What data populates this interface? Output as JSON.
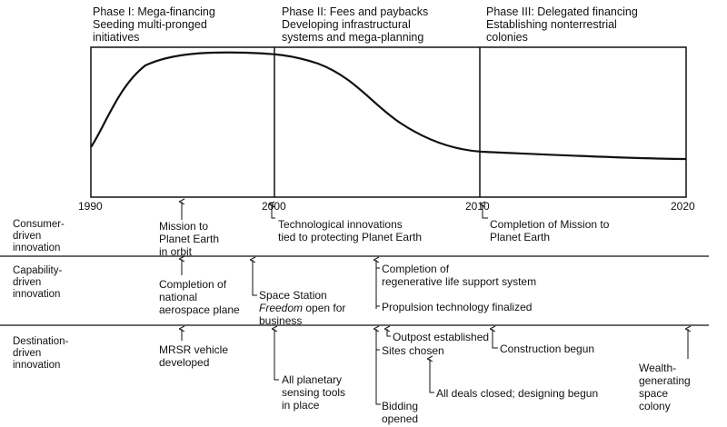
{
  "phases": [
    {
      "line1": "Phase I:  Mega-financing",
      "line2": "Seeding multi-pronged",
      "line3": "initiatives"
    },
    {
      "line1": "Phase II:  Fees and paybacks",
      "line2": "Developing infrastructural",
      "line3": "systems and mega-planning"
    },
    {
      "line1": "Phase III:  Delegated financing",
      "line2": "Establishing nonterrestrial",
      "line3": "colonies"
    }
  ],
  "years": [
    "1990",
    "2000",
    "2010",
    "2020"
  ],
  "rows": {
    "consumer": {
      "l1": "Consumer-",
      "l2": "driven",
      "l3": "innovation"
    },
    "capability": {
      "l1": "Capability-",
      "l2": "driven",
      "l3": "innovation"
    },
    "destination": {
      "l1": "Destination-",
      "l2": "driven",
      "l3": "innovation"
    }
  },
  "events": {
    "mission_planet_earth": {
      "l1": "Mission to",
      "l2": "Planet Earth",
      "l3": "in orbit"
    },
    "tech_innovations": {
      "l1": "Technological innovations",
      "l2": "tied to protecting Planet Earth"
    },
    "completion_mission": {
      "l1": "Completion of Mission to",
      "l2": "Planet Earth"
    },
    "aerospace_plane": {
      "l1": "Completion of",
      "l2": "national",
      "l3": "aerospace plane"
    },
    "space_station": {
      "l1a": "Space Station",
      "l2a": "Freedom",
      "l2b": " open for",
      "l3": "business"
    },
    "life_support": {
      "l1": "Completion of",
      "l2": "regenerative life support system"
    },
    "propulsion": {
      "l1": "Propulsion technology finalized"
    },
    "mrsr": {
      "l1": "MRSR vehicle",
      "l2": "developed"
    },
    "sensing_tools": {
      "l1": "All planetary",
      "l2": "sensing tools",
      "l3": "in place"
    },
    "bidding": {
      "l1": "Bidding",
      "l2": "opened"
    },
    "sites": {
      "l1": "Sites chosen"
    },
    "outpost": {
      "l1": "Outpost established"
    },
    "deals": {
      "l1": "All deals closed; designing begun"
    },
    "construction": {
      "l1": "Construction begun"
    },
    "wealth": {
      "l1": "Wealth-",
      "l2": "generating",
      "l3": "space",
      "l4": "colony"
    }
  }
}
